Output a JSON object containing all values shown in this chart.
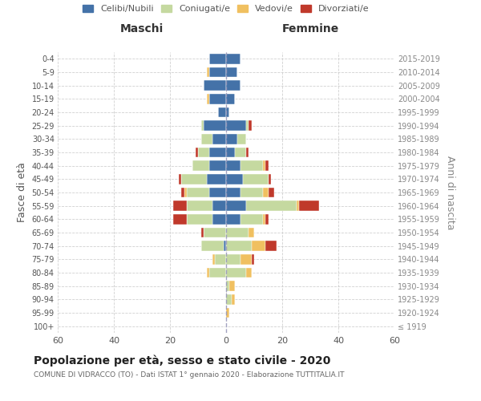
{
  "age_groups": [
    "100+",
    "95-99",
    "90-94",
    "85-89",
    "80-84",
    "75-79",
    "70-74",
    "65-69",
    "60-64",
    "55-59",
    "50-54",
    "45-49",
    "40-44",
    "35-39",
    "30-34",
    "25-29",
    "20-24",
    "15-19",
    "10-14",
    "5-9",
    "0-4"
  ],
  "birth_years": [
    "≤ 1919",
    "1920-1924",
    "1925-1929",
    "1930-1934",
    "1935-1939",
    "1940-1944",
    "1945-1949",
    "1950-1954",
    "1955-1959",
    "1960-1964",
    "1965-1969",
    "1970-1974",
    "1975-1979",
    "1980-1984",
    "1985-1989",
    "1990-1994",
    "1995-1999",
    "2000-2004",
    "2005-2009",
    "2010-2014",
    "2015-2019"
  ],
  "male": {
    "celibi": [
      0,
      0,
      0,
      0,
      0,
      0,
      1,
      0,
      5,
      5,
      6,
      7,
      6,
      6,
      5,
      8,
      3,
      6,
      8,
      6,
      6
    ],
    "coniugati": [
      0,
      0,
      0,
      0,
      6,
      4,
      8,
      8,
      9,
      9,
      8,
      9,
      6,
      4,
      4,
      1,
      0,
      0,
      0,
      0,
      0
    ],
    "vedovi": [
      0,
      0,
      0,
      0,
      1,
      1,
      0,
      0,
      0,
      0,
      1,
      0,
      0,
      0,
      0,
      0,
      0,
      1,
      0,
      1,
      0
    ],
    "divorziati": [
      0,
      0,
      0,
      0,
      0,
      0,
      0,
      1,
      5,
      5,
      1,
      1,
      0,
      1,
      0,
      0,
      0,
      0,
      0,
      0,
      0
    ]
  },
  "female": {
    "nubili": [
      0,
      0,
      0,
      0,
      0,
      0,
      0,
      0,
      5,
      7,
      5,
      6,
      5,
      3,
      4,
      7,
      1,
      3,
      5,
      4,
      5
    ],
    "coniugate": [
      0,
      0,
      2,
      1,
      7,
      5,
      9,
      8,
      8,
      18,
      8,
      9,
      8,
      4,
      3,
      1,
      0,
      0,
      0,
      0,
      0
    ],
    "vedove": [
      0,
      1,
      1,
      2,
      2,
      4,
      5,
      2,
      1,
      1,
      2,
      0,
      1,
      0,
      0,
      0,
      0,
      0,
      0,
      0,
      0
    ],
    "divorziate": [
      0,
      0,
      0,
      0,
      0,
      1,
      4,
      0,
      1,
      7,
      2,
      1,
      1,
      1,
      0,
      1,
      0,
      0,
      0,
      0,
      0
    ]
  },
  "color_celibi": "#4472a8",
  "color_coniugati": "#c5d9a0",
  "color_vedovi": "#f0c060",
  "color_divorziati": "#c0392b",
  "xlim": 60,
  "title": "Popolazione per età, sesso e stato civile - 2020",
  "subtitle": "COMUNE DI VIDRACCO (TO) - Dati ISTAT 1° gennaio 2020 - Elaborazione TUTTITALIA.IT",
  "ylabel_left": "Fasce di età",
  "ylabel_right": "Anni di nascita",
  "xlabel_male": "Maschi",
  "xlabel_female": "Femmine",
  "bg_color": "#ffffff",
  "grid_color": "#cccccc",
  "bar_height": 0.75,
  "legend_labels": [
    "Celibi/Nubili",
    "Coniugati/e",
    "Vedovi/e",
    "Divorziati/e"
  ]
}
